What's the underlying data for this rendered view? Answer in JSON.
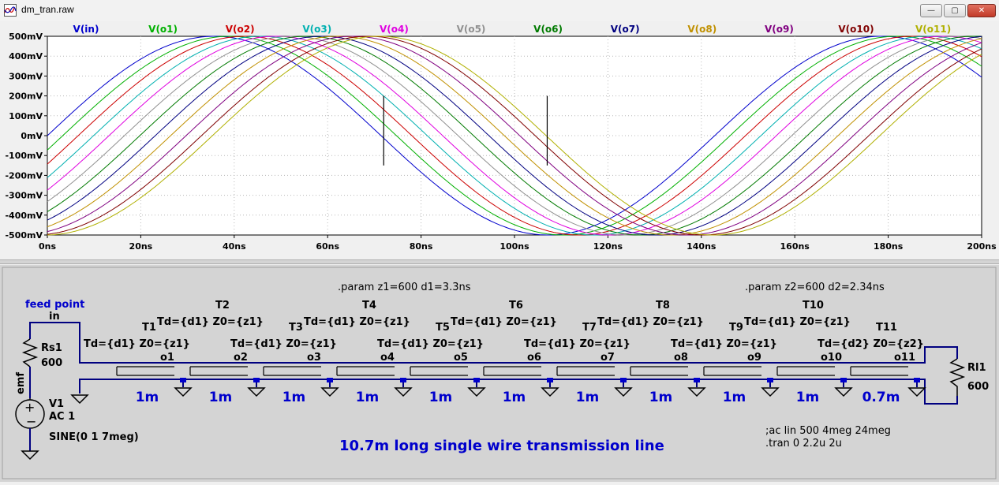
{
  "window": {
    "title": "dm_tran.raw",
    "min_glyph": "—",
    "max_glyph": "▢",
    "close_glyph": "✕"
  },
  "chart_data": {
    "type": "line",
    "xlabel": "",
    "ylabel": "",
    "xlim": [
      0,
      200
    ],
    "ylim": [
      -500,
      500
    ],
    "x_ticks": [
      "0ns",
      "20ns",
      "40ns",
      "60ns",
      "80ns",
      "100ns",
      "120ns",
      "140ns",
      "160ns",
      "180ns",
      "200ns"
    ],
    "y_ticks": [
      "500mV",
      "400mV",
      "300mV",
      "200mV",
      "100mV",
      "0mV",
      "-100mV",
      "-200mV",
      "-300mV",
      "-400mV",
      "-500mV"
    ],
    "grid": true,
    "legend_position": "top",
    "signal": {
      "amplitude_mV": 500,
      "frequency_MHz": 7
    },
    "series": [
      {
        "name": "V(in)",
        "delay_ns": 0,
        "color": "#0000cc"
      },
      {
        "name": "V(o1)",
        "delay_ns": 3.3,
        "color": "#00b000"
      },
      {
        "name": "V(o2)",
        "delay_ns": 6.6,
        "color": "#cc0000"
      },
      {
        "name": "V(o3)",
        "delay_ns": 9.9,
        "color": "#00b0b0"
      },
      {
        "name": "V(o4)",
        "delay_ns": 13.2,
        "color": "#e000e0"
      },
      {
        "name": "V(o5)",
        "delay_ns": 16.5,
        "color": "#909090"
      },
      {
        "name": "V(o6)",
        "delay_ns": 19.8,
        "color": "#007a00"
      },
      {
        "name": "V(o7)",
        "delay_ns": 23.1,
        "color": "#000080"
      },
      {
        "name": "V(o8)",
        "delay_ns": 26.4,
        "color": "#c09000"
      },
      {
        "name": "V(o9)",
        "delay_ns": 29.7,
        "color": "#800080"
      },
      {
        "name": "V(o10)",
        "delay_ns": 33.0,
        "color": "#800000"
      },
      {
        "name": "V(o11)",
        "delay_ns": 35.34,
        "color": "#b0b000"
      }
    ],
    "cursors_ns": [
      72,
      107
    ]
  },
  "schematic": {
    "param1": ".param z1=600 d1=3.3ns",
    "param2": ".param z2=600 d2=2.34ns",
    "feed_point": "feed point",
    "in_label": "in",
    "rs_name": "Rs1",
    "rs_value": "600",
    "rl_name": "Rl1",
    "rl_value": "600",
    "emf_label": "emf",
    "source_name": "V1",
    "source_ac": "AC 1",
    "source_fn": "SINE(0 1 7meg)",
    "line_title": "10.7m long single wire transmission line",
    "ac_directive": ";ac lin 500 4meg 24meg",
    "tran_directive": ".tran 0 2.2u 2u",
    "segments": [
      {
        "name": "T1",
        "params": "Td={d1} Z0={z1}",
        "node": "o1",
        "length": "1m"
      },
      {
        "name": "T2",
        "params": "Td={d1} Z0={z1}",
        "node": "o2",
        "length": "1m"
      },
      {
        "name": "T3",
        "params": "Td={d1} Z0={z1}",
        "node": "o3",
        "length": "1m"
      },
      {
        "name": "T4",
        "params": "Td={d1} Z0={z1}",
        "node": "o4",
        "length": "1m"
      },
      {
        "name": "T5",
        "params": "Td={d1} Z0={z1}",
        "node": "o5",
        "length": "1m"
      },
      {
        "name": "T6",
        "params": "Td={d1} Z0={z1}",
        "node": "o6",
        "length": "1m"
      },
      {
        "name": "T7",
        "params": "Td={d1} Z0={z1}",
        "node": "o7",
        "length": "1m"
      },
      {
        "name": "T8",
        "params": "Td={d1} Z0={z1}",
        "node": "o8",
        "length": "1m"
      },
      {
        "name": "T9",
        "params": "Td={d1} Z0={z1}",
        "node": "o9",
        "length": "1m"
      },
      {
        "name": "T10",
        "params": "Td={d1} Z0={z1}",
        "node": "o10",
        "length": "1m"
      },
      {
        "name": "T11",
        "params": "Td={d2} Z0={z2}",
        "node": "o11",
        "length": "0.7m"
      }
    ]
  }
}
